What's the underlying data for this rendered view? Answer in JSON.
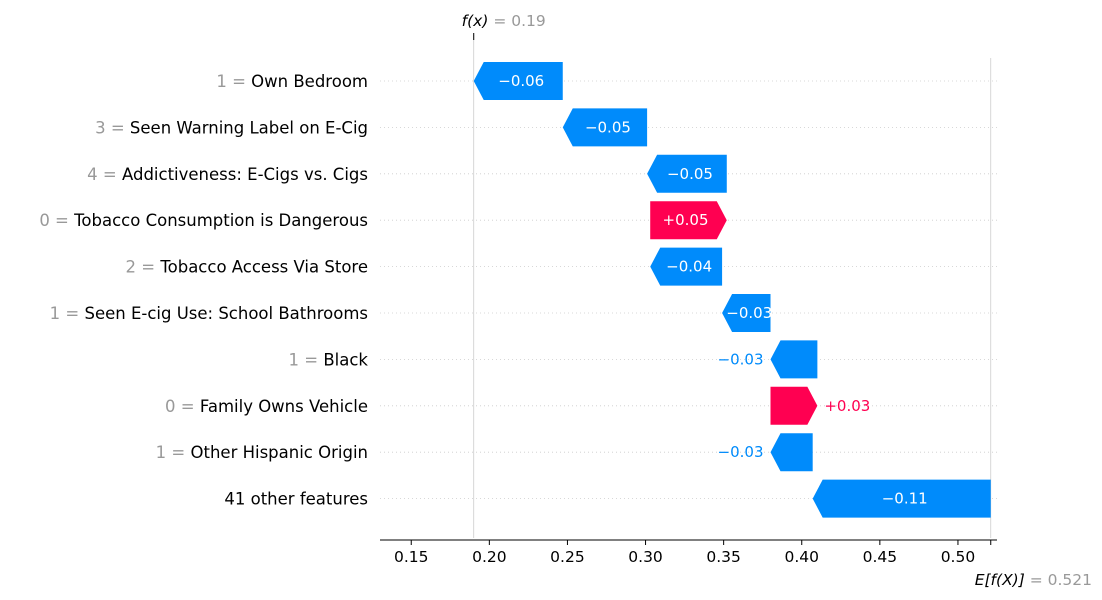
{
  "chart_data": {
    "type": "waterfall",
    "title": "",
    "xlabel": "",
    "ylabel": "",
    "xlim": [
      0.13,
      0.525
    ],
    "xticks": [
      "0.15",
      "0.20",
      "0.25",
      "0.30",
      "0.35",
      "0.40",
      "0.45",
      "0.50"
    ],
    "fx": {
      "label": "f(x)",
      "eq": "=",
      "value": 0.19,
      "value_text": "0.19"
    },
    "efx": {
      "label": "E[f(X)]",
      "eq": "=",
      "value": 0.521,
      "value_text": "0.521"
    },
    "colors": {
      "positive": "#ff0051",
      "negative": "#008bfb",
      "grid": "#cccccc",
      "axis": "#000000",
      "muted": "#999999"
    },
    "grid": "dotted-horizontal",
    "features": [
      {
        "value": "1",
        "name": "Own Bedroom",
        "start": 0.247,
        "end": 0.19,
        "label": "−0.06",
        "label_pos": "inside"
      },
      {
        "value": "3",
        "name": "Seen Warning Label on E-Cig",
        "start": 0.301,
        "end": 0.247,
        "label": "−0.05",
        "label_pos": "inside"
      },
      {
        "value": "4",
        "name": "Addictiveness: E-Cigs vs. Cigs",
        "start": 0.352,
        "end": 0.301,
        "label": "−0.05",
        "label_pos": "inside"
      },
      {
        "value": "0",
        "name": "Tobacco Consumption is Dangerous",
        "start": 0.303,
        "end": 0.352,
        "label": "+0.05",
        "label_pos": "inside"
      },
      {
        "value": "2",
        "name": "Tobacco Access Via Store",
        "start": 0.349,
        "end": 0.303,
        "label": "−0.04",
        "label_pos": "inside"
      },
      {
        "value": "1",
        "name": "Seen E-cig Use: School Bathrooms",
        "start": 0.38,
        "end": 0.349,
        "label": "−0.03",
        "label_pos": "inside"
      },
      {
        "value": "1",
        "name": "Black",
        "start": 0.41,
        "end": 0.38,
        "label": "−0.03",
        "label_pos": "outside"
      },
      {
        "value": "0",
        "name": "Family Owns Vehicle",
        "start": 0.38,
        "end": 0.41,
        "label": "+0.03",
        "label_pos": "outside"
      },
      {
        "value": "1",
        "name": "Other Hispanic Origin",
        "start": 0.407,
        "end": 0.38,
        "label": "−0.03",
        "label_pos": "outside"
      },
      {
        "value": "",
        "name": "41 other features",
        "start": 0.521,
        "end": 0.407,
        "label": "−0.11",
        "label_pos": "inside"
      }
    ]
  }
}
